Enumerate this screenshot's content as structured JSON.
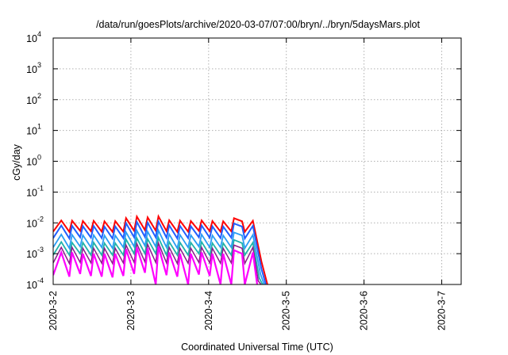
{
  "chart_data": {
    "type": "line",
    "title": "/data/run/goesPlots/archive/2020-03-07/07:00/bryn/../bryn/5daysMars.plot",
    "xlabel": "Coordinated Universal Time (UTC)",
    "ylabel": "cGy/day",
    "y_scale": "log",
    "ylim": [
      0.0001,
      10000
    ],
    "xlim": [
      "2020-3-2",
      "2020-3-7 06:00"
    ],
    "grid": true,
    "x_ticks": [
      "2020-3-2",
      "2020-3-3",
      "2020-3-4",
      "2020-3-5",
      "2020-3-6",
      "2020-3-7"
    ],
    "y_ticks": [
      {
        "value": 0.0001,
        "base": "10",
        "exp": "-4"
      },
      {
        "value": 0.001,
        "base": "10",
        "exp": "-3"
      },
      {
        "value": 0.01,
        "base": "10",
        "exp": "-2"
      },
      {
        "value": 0.1,
        "base": "10",
        "exp": "-1"
      },
      {
        "value": 1,
        "base": "10",
        "exp": "0"
      },
      {
        "value": 10,
        "base": "10",
        "exp": "1"
      },
      {
        "value": 100,
        "base": "10",
        "exp": "2"
      },
      {
        "value": 1000,
        "base": "10",
        "exp": "3"
      },
      {
        "value": 10000,
        "base": "10",
        "exp": "4"
      }
    ],
    "series": [
      {
        "color": "#ff0000",
        "width": 2,
        "points": [
          [
            "2020-03-02 00:00",
            0.0052
          ],
          [
            "2020-03-02 02:30",
            0.012
          ],
          [
            "2020-03-02 05:00",
            0.0051
          ],
          [
            "2020-03-02 05:50",
            0.0118
          ],
          [
            "2020-03-02 08:20",
            0.0055
          ],
          [
            "2020-03-02 09:10",
            0.0115
          ],
          [
            "2020-03-02 11:40",
            0.0054
          ],
          [
            "2020-03-02 12:30",
            0.0116
          ],
          [
            "2020-03-02 15:00",
            0.0052
          ],
          [
            "2020-03-02 15:50",
            0.0112
          ],
          [
            "2020-03-02 18:20",
            0.0051
          ],
          [
            "2020-03-02 19:10",
            0.0114
          ],
          [
            "2020-03-02 21:40",
            0.0052
          ],
          [
            "2020-03-02 22:30",
            0.0142
          ],
          [
            "2020-03-03 01:00",
            0.0055
          ],
          [
            "2020-03-03 01:50",
            0.016
          ],
          [
            "2020-03-03 04:20",
            0.0058
          ],
          [
            "2020-03-03 05:10",
            0.0151
          ],
          [
            "2020-03-03 07:40",
            0.0056
          ],
          [
            "2020-03-03 08:30",
            0.0162
          ],
          [
            "2020-03-03 11:00",
            0.0054
          ],
          [
            "2020-03-03 11:50",
            0.0121
          ],
          [
            "2020-03-03 14:20",
            0.0051
          ],
          [
            "2020-03-03 15:10",
            0.0118
          ],
          [
            "2020-03-03 17:40",
            0.0052
          ],
          [
            "2020-03-03 18:30",
            0.0115
          ],
          [
            "2020-03-03 21:00",
            0.0055
          ],
          [
            "2020-03-03 21:50",
            0.012
          ],
          [
            "2020-03-04 00:20",
            0.0054
          ],
          [
            "2020-03-04 01:10",
            0.0114
          ],
          [
            "2020-03-04 03:40",
            0.0052
          ],
          [
            "2020-03-04 04:30",
            0.0112
          ],
          [
            "2020-03-04 07:00",
            0.0053
          ],
          [
            "2020-03-04 07:50",
            0.0141
          ],
          [
            "2020-03-04 10:20",
            0.0112
          ],
          [
            "2020-03-04 11:10",
            0.0051
          ],
          [
            "2020-03-04 13:40",
            0.0117
          ],
          [
            "2020-03-04 16:20",
            0.00055
          ],
          [
            "2020-03-04 18:10",
            0.0001
          ]
        ]
      },
      {
        "color": "#2060ff",
        "width": 2,
        "points": [
          [
            "2020-03-02 00:00",
            0.0032
          ],
          [
            "2020-03-02 02:30",
            0.0082
          ],
          [
            "2020-03-02 05:00",
            0.0031
          ],
          [
            "2020-03-02 05:50",
            0.008
          ],
          [
            "2020-03-02 08:20",
            0.0034
          ],
          [
            "2020-03-02 09:10",
            0.0078
          ],
          [
            "2020-03-02 11:40",
            0.0033
          ],
          [
            "2020-03-02 12:30",
            0.0079
          ],
          [
            "2020-03-02 15:00",
            0.0032
          ],
          [
            "2020-03-02 15:50",
            0.0076
          ],
          [
            "2020-03-02 18:20",
            0.0031
          ],
          [
            "2020-03-02 19:10",
            0.0077
          ],
          [
            "2020-03-02 21:40",
            0.0032
          ],
          [
            "2020-03-02 22:30",
            0.0098
          ],
          [
            "2020-03-03 01:00",
            0.0034
          ],
          [
            "2020-03-03 01:50",
            0.0108
          ],
          [
            "2020-03-03 04:20",
            0.0035
          ],
          [
            "2020-03-03 05:10",
            0.0102
          ],
          [
            "2020-03-03 07:40",
            0.0034
          ],
          [
            "2020-03-03 08:30",
            0.011
          ],
          [
            "2020-03-03 11:00",
            0.0033
          ],
          [
            "2020-03-03 11:50",
            0.0083
          ],
          [
            "2020-03-03 14:20",
            0.0031
          ],
          [
            "2020-03-03 15:10",
            0.008
          ],
          [
            "2020-03-03 17:40",
            0.0032
          ],
          [
            "2020-03-03 18:30",
            0.0078
          ],
          [
            "2020-03-03 21:00",
            0.0034
          ],
          [
            "2020-03-03 21:50",
            0.0082
          ],
          [
            "2020-03-04 00:20",
            0.0033
          ],
          [
            "2020-03-04 01:10",
            0.0077
          ],
          [
            "2020-03-04 03:40",
            0.0032
          ],
          [
            "2020-03-04 04:30",
            0.0076
          ],
          [
            "2020-03-04 07:00",
            0.0033
          ],
          [
            "2020-03-04 07:50",
            0.0095
          ],
          [
            "2020-03-04 10:20",
            0.0076
          ],
          [
            "2020-03-04 11:10",
            0.0031
          ],
          [
            "2020-03-04 13:40",
            0.008
          ],
          [
            "2020-03-04 16:20",
            0.00032
          ],
          [
            "2020-03-04 17:40",
            0.0001
          ]
        ]
      },
      {
        "color": "#2a9df4",
        "width": 1.8,
        "points": [
          [
            "2020-03-02 00:00",
            0.0016
          ],
          [
            "2020-03-02 02:30",
            0.0042
          ],
          [
            "2020-03-02 05:00",
            0.0015
          ],
          [
            "2020-03-02 05:50",
            0.0041
          ],
          [
            "2020-03-02 08:20",
            0.0017
          ],
          [
            "2020-03-02 09:10",
            0.004
          ],
          [
            "2020-03-02 11:40",
            0.0016
          ],
          [
            "2020-03-02 12:30",
            0.004
          ],
          [
            "2020-03-02 15:00",
            0.0016
          ],
          [
            "2020-03-02 15:50",
            0.0039
          ],
          [
            "2020-03-02 18:20",
            0.0015
          ],
          [
            "2020-03-02 19:10",
            0.0039
          ],
          [
            "2020-03-02 21:40",
            0.0016
          ],
          [
            "2020-03-02 22:30",
            0.005
          ],
          [
            "2020-03-03 01:00",
            0.0017
          ],
          [
            "2020-03-03 01:50",
            0.0056
          ],
          [
            "2020-03-03 04:20",
            0.0018
          ],
          [
            "2020-03-03 05:10",
            0.0052
          ],
          [
            "2020-03-03 07:40",
            0.0017
          ],
          [
            "2020-03-03 08:30",
            0.0057
          ],
          [
            "2020-03-03 11:00",
            0.0016
          ],
          [
            "2020-03-03 11:50",
            0.0043
          ],
          [
            "2020-03-03 14:20",
            0.0015
          ],
          [
            "2020-03-03 15:10",
            0.0041
          ],
          [
            "2020-03-03 17:40",
            0.0016
          ],
          [
            "2020-03-03 18:30",
            0.004
          ],
          [
            "2020-03-03 21:00",
            0.0017
          ],
          [
            "2020-03-03 21:50",
            0.0042
          ],
          [
            "2020-03-04 00:20",
            0.0016
          ],
          [
            "2020-03-04 01:10",
            0.0039
          ],
          [
            "2020-03-04 03:40",
            0.0016
          ],
          [
            "2020-03-04 04:30",
            0.0039
          ],
          [
            "2020-03-04 07:00",
            0.0016
          ],
          [
            "2020-03-04 07:50",
            0.0049
          ],
          [
            "2020-03-04 10:20",
            0.0039
          ],
          [
            "2020-03-04 11:10",
            0.0015
          ],
          [
            "2020-03-04 13:40",
            0.0041
          ],
          [
            "2020-03-04 16:00",
            0.00022
          ],
          [
            "2020-03-04 17:10",
            0.0001
          ]
        ]
      },
      {
        "color": "#20b2aa",
        "width": 1.8,
        "points": [
          [
            "2020-03-02 00:00",
            0.0009
          ],
          [
            "2020-03-02 02:30",
            0.0024
          ],
          [
            "2020-03-02 05:00",
            0.0009
          ],
          [
            "2020-03-02 05:50",
            0.0023
          ],
          [
            "2020-03-02 08:20",
            0.001
          ],
          [
            "2020-03-02 09:10",
            0.0023
          ],
          [
            "2020-03-02 11:40",
            0.0009
          ],
          [
            "2020-03-02 12:30",
            0.0023
          ],
          [
            "2020-03-02 15:00",
            0.0009
          ],
          [
            "2020-03-02 15:50",
            0.0022
          ],
          [
            "2020-03-02 18:20",
            0.0009
          ],
          [
            "2020-03-02 19:10",
            0.0022
          ],
          [
            "2020-03-02 21:40",
            0.0009
          ],
          [
            "2020-03-02 22:30",
            0.0029
          ],
          [
            "2020-03-03 01:00",
            0.001
          ],
          [
            "2020-03-03 01:50",
            0.0032
          ],
          [
            "2020-03-03 04:20",
            0.001
          ],
          [
            "2020-03-03 05:10",
            0.003
          ],
          [
            "2020-03-03 07:40",
            0.001
          ],
          [
            "2020-03-03 08:30",
            0.0033
          ],
          [
            "2020-03-03 11:00",
            0.0009
          ],
          [
            "2020-03-03 11:50",
            0.0024
          ],
          [
            "2020-03-03 14:20",
            0.0009
          ],
          [
            "2020-03-03 15:10",
            0.0023
          ],
          [
            "2020-03-03 17:40",
            0.0009
          ],
          [
            "2020-03-03 18:30",
            0.0023
          ],
          [
            "2020-03-03 21:00",
            0.001
          ],
          [
            "2020-03-03 21:50",
            0.0024
          ],
          [
            "2020-03-04 00:20",
            0.0009
          ],
          [
            "2020-03-04 01:10",
            0.0022
          ],
          [
            "2020-03-04 03:40",
            0.0009
          ],
          [
            "2020-03-04 04:30",
            0.0022
          ],
          [
            "2020-03-04 07:00",
            0.0009
          ],
          [
            "2020-03-04 07:50",
            0.0028
          ],
          [
            "2020-03-04 10:20",
            0.0022
          ],
          [
            "2020-03-04 11:10",
            0.0009
          ],
          [
            "2020-03-04 13:40",
            0.0023
          ],
          [
            "2020-03-04 15:40",
            0.00016
          ],
          [
            "2020-03-04 16:40",
            0.0001
          ]
        ]
      },
      {
        "color": "#8b1a8b",
        "width": 1.5,
        "points": [
          [
            "2020-03-02 00:00",
            0.0005
          ],
          [
            "2020-03-02 02:30",
            0.0016
          ],
          [
            "2020-03-02 05:00",
            0.00048
          ],
          [
            "2020-03-02 05:50",
            0.0016
          ],
          [
            "2020-03-02 08:20",
            0.00052
          ],
          [
            "2020-03-02 09:10",
            0.0015
          ],
          [
            "2020-03-02 11:40",
            0.0005
          ],
          [
            "2020-03-02 12:30",
            0.0015
          ],
          [
            "2020-03-02 15:00",
            0.00049
          ],
          [
            "2020-03-02 15:50",
            0.0015
          ],
          [
            "2020-03-02 18:20",
            0.00048
          ],
          [
            "2020-03-02 19:10",
            0.0015
          ],
          [
            "2020-03-02 21:40",
            0.0005
          ],
          [
            "2020-03-02 22:30",
            0.0019
          ],
          [
            "2020-03-03 01:00",
            0.00052
          ],
          [
            "2020-03-03 01:50",
            0.0021
          ],
          [
            "2020-03-03 04:20",
            0.00054
          ],
          [
            "2020-03-03 05:10",
            0.002
          ],
          [
            "2020-03-03 07:40",
            0.00052
          ],
          [
            "2020-03-03 08:30",
            0.0022
          ],
          [
            "2020-03-03 11:00",
            0.0005
          ],
          [
            "2020-03-03 11:50",
            0.0016
          ],
          [
            "2020-03-03 14:20",
            0.00048
          ],
          [
            "2020-03-03 15:10",
            0.0015
          ],
          [
            "2020-03-03 17:40",
            0.00049
          ],
          [
            "2020-03-03 18:30",
            0.0015
          ],
          [
            "2020-03-03 21:00",
            0.00052
          ],
          [
            "2020-03-03 21:50",
            0.0016
          ],
          [
            "2020-03-04 00:20",
            0.0005
          ],
          [
            "2020-03-04 01:10",
            0.0015
          ],
          [
            "2020-03-04 03:40",
            0.00049
          ],
          [
            "2020-03-04 04:30",
            0.0015
          ],
          [
            "2020-03-04 07:00",
            0.0005
          ],
          [
            "2020-03-04 07:50",
            0.0019
          ],
          [
            "2020-03-04 10:20",
            0.0015
          ],
          [
            "2020-03-04 11:10",
            0.00048
          ],
          [
            "2020-03-04 13:40",
            0.0016
          ],
          [
            "2020-03-04 15:20",
            0.00013
          ],
          [
            "2020-03-04 16:10",
            0.0001
          ]
        ]
      },
      {
        "color": "#ff00ff",
        "width": 2.2,
        "points": [
          [
            "2020-03-02 00:00",
            0.0002
          ],
          [
            "2020-03-02 02:30",
            0.0011
          ],
          [
            "2020-03-02 05:00",
            0.00018
          ],
          [
            "2020-03-02 05:50",
            0.0011
          ],
          [
            "2020-03-02 08:20",
            0.00022
          ],
          [
            "2020-03-02 09:10",
            0.001
          ],
          [
            "2020-03-02 11:40",
            0.00019
          ],
          [
            "2020-03-02 12:30",
            0.001
          ],
          [
            "2020-03-02 15:00",
            0.00018
          ],
          [
            "2020-03-02 15:50",
            0.001
          ],
          [
            "2020-03-02 18:20",
            0.00017
          ],
          [
            "2020-03-02 19:10",
            0.001
          ],
          [
            "2020-03-02 21:40",
            0.00019
          ],
          [
            "2020-03-02 22:30",
            0.0014
          ],
          [
            "2020-03-03 01:00",
            0.00022
          ],
          [
            "2020-03-03 01:50",
            0.0016
          ],
          [
            "2020-03-03 04:20",
            0.00024
          ],
          [
            "2020-03-03 05:10",
            0.0015
          ],
          [
            "2020-03-03 07:40",
            0.0001
          ],
          [
            "2020-03-03 08:30",
            0.0017
          ],
          [
            "2020-03-03 11:00",
            0.0002
          ],
          [
            "2020-03-03 11:50",
            0.0011
          ],
          [
            "2020-03-03 14:20",
            0.00018
          ],
          [
            "2020-03-03 15:10",
            0.001
          ],
          [
            "2020-03-03 17:40",
            0.0001
          ],
          [
            "2020-03-03 18:30",
            0.001
          ],
          [
            "2020-03-03 21:00",
            0.00021
          ],
          [
            "2020-03-03 21:50",
            0.0011
          ],
          [
            "2020-03-04 00:20",
            0.00019
          ],
          [
            "2020-03-04 01:10",
            0.001
          ],
          [
            "2020-03-04 03:40",
            0.0001
          ],
          [
            "2020-03-04 04:30",
            0.001
          ],
          [
            "2020-03-04 07:00",
            0.0001
          ],
          [
            "2020-03-04 07:50",
            0.0013
          ],
          [
            "2020-03-04 10:20",
            0.001
          ],
          [
            "2020-03-04 11:10",
            0.0001
          ],
          [
            "2020-03-04 13:40",
            0.0011
          ],
          [
            "2020-03-04 15:00",
            0.0001
          ]
        ]
      }
    ]
  }
}
